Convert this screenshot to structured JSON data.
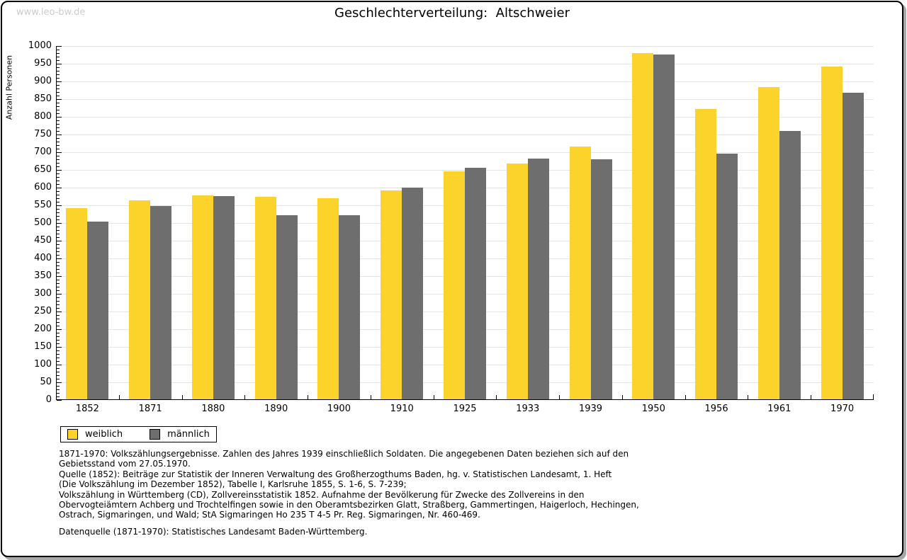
{
  "page": {
    "watermark": "www.leo-bw.de",
    "title": "Geschlechterverteilung:  Altschweier"
  },
  "chart_data": {
    "type": "bar",
    "title": "Geschlechterverteilung: Altschweier",
    "xlabel": "",
    "ylabel": "Anzahl Personen",
    "ylim": [
      0,
      1000
    ],
    "ytick_step": 50,
    "y_minor_step": 10,
    "grid": true,
    "legend_position": "bottom-left",
    "categories": [
      "1852",
      "1871",
      "1880",
      "1890",
      "1900",
      "1910",
      "1925",
      "1933",
      "1939",
      "1950",
      "1956",
      "1961",
      "1970"
    ],
    "series": [
      {
        "name": "weiblich",
        "color": "#FCD32B",
        "values": [
          540,
          563,
          576,
          572,
          569,
          590,
          645,
          666,
          714,
          979,
          821,
          882,
          940
        ]
      },
      {
        "name": "männlich",
        "color": "#6E6E6E",
        "values": [
          502,
          547,
          574,
          521,
          520,
          599,
          655,
          681,
          679,
          975,
          694,
          759,
          866
        ]
      }
    ]
  },
  "notes": {
    "lines": [
      "1871-1970: Volkszählungsergebnisse. Zahlen des Jahres 1939 einschließlich Soldaten. Die angegebenen Daten beziehen sich auf den",
      "Gebietsstand vom 27.05.1970.",
      "Quelle (1852): Beiträge zur Statistik der Inneren Verwaltung des Großherzogthums Baden, hg. v. Statistischen Landesamt, 1. Heft",
      "(Die Volkszählung im Dezember 1852), Tabelle I, Karlsruhe 1855, S. 1-6, S. 7-239;",
      "Volkszählung in Württemberg (CD), Zollvereinsstatistik 1852. Aufnahme der Bevölkerung für Zwecke des Zollvereins in den",
      "Obervogteiämtern Achberg und Trochtelfingen sowie in den Oberamtsbezirken Glatt, Straßberg, Gammertingen, Haigerloch, Hechingen,",
      "Ostrach, Sigmaringen, und Wald; StA Sigmaringen Ho 235 T 4-5 Pr. Reg. Sigmaringen, Nr. 460-469."
    ],
    "datasource": "Datenquelle (1871-1970): Statistisches Landesamt Baden-Württemberg."
  }
}
